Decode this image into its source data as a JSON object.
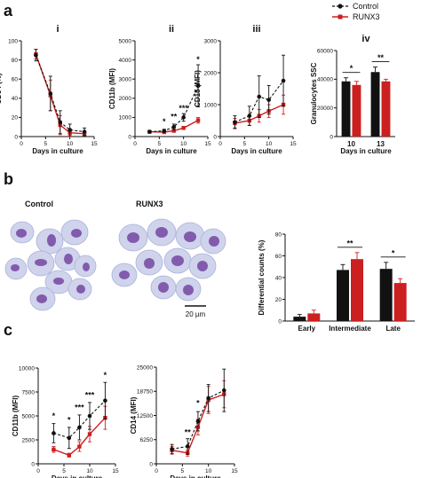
{
  "panels": {
    "a": "a",
    "b": "b",
    "c": "c"
  },
  "legend": {
    "control": "Control",
    "runx3": "RUNX3"
  },
  "colors": {
    "control": "#111111",
    "runx3": "#cc1f1f"
  },
  "micrographs": {
    "control_label": "Control",
    "runx3_label": "RUNX3",
    "scale_bar": "20 µm"
  },
  "chart_data": [
    {
      "id": "a_i",
      "type": "line",
      "panel_label": "i",
      "xlabel": "Days in culture",
      "ylabel": "CD34 (%)",
      "xlim": [
        0,
        15
      ],
      "ylim": [
        0,
        100
      ],
      "xticks": [
        0,
        5,
        10,
        15
      ],
      "yticks": [
        0,
        20,
        40,
        60,
        80,
        100
      ],
      "series": [
        {
          "name": "Control",
          "x": [
            3,
            6,
            8,
            10,
            13
          ],
          "y": [
            85,
            45,
            15,
            7,
            5
          ],
          "err": [
            6,
            18,
            12,
            6,
            4
          ]
        },
        {
          "name": "RUNX3",
          "x": [
            3,
            6,
            8,
            10,
            13
          ],
          "y": [
            86,
            43,
            12,
            4,
            3
          ],
          "err": [
            5,
            16,
            10,
            4,
            2
          ]
        }
      ],
      "annotations": []
    },
    {
      "id": "a_ii",
      "type": "line",
      "panel_label": "ii",
      "xlabel": "Days in culture",
      "ylabel": "CD11b (MFI)",
      "xlim": [
        0,
        15
      ],
      "ylim": [
        0,
        5000
      ],
      "xticks": [
        0,
        5,
        10,
        15
      ],
      "yticks": [
        0,
        1000,
        2000,
        3000,
        4000,
        5000
      ],
      "series": [
        {
          "name": "Control",
          "x": [
            3,
            6,
            8,
            10,
            13
          ],
          "y": [
            250,
            300,
            500,
            1000,
            2650
          ],
          "err": [
            50,
            80,
            150,
            200,
            1100
          ]
        },
        {
          "name": "RUNX3",
          "x": [
            3,
            6,
            8,
            10,
            13
          ],
          "y": [
            250,
            230,
            300,
            450,
            850
          ],
          "err": [
            40,
            50,
            60,
            80,
            150
          ]
        }
      ],
      "annotations": [
        {
          "text": "*",
          "x": 6,
          "y": 650
        },
        {
          "text": "**",
          "x": 8,
          "y": 900
        },
        {
          "text": "***",
          "x": 10,
          "y": 1350
        },
        {
          "text": "*",
          "x": 13,
          "y": 3900
        }
      ]
    },
    {
      "id": "a_iii",
      "type": "line",
      "panel_label": "iii",
      "xlabel": "Days in culture",
      "ylabel": "CD15 (MFI)",
      "xlim": [
        0,
        15
      ],
      "ylim": [
        0,
        3000
      ],
      "xticks": [
        0,
        5,
        10,
        15
      ],
      "yticks": [
        0,
        1000,
        2000,
        3000
      ],
      "series": [
        {
          "name": "Control",
          "x": [
            3,
            6,
            8,
            10,
            13
          ],
          "y": [
            450,
            650,
            1250,
            1150,
            1750
          ],
          "err": [
            200,
            300,
            650,
            450,
            800
          ]
        },
        {
          "name": "RUNX3",
          "x": [
            3,
            6,
            8,
            10,
            13
          ],
          "y": [
            420,
            500,
            650,
            800,
            1000
          ],
          "err": [
            150,
            150,
            200,
            200,
            300
          ]
        }
      ],
      "annotations": []
    },
    {
      "id": "a_iv",
      "type": "bar",
      "panel_label": "iv",
      "xlabel": "Days in culture",
      "ylabel": "Granulocytes SSC",
      "categories": [
        "10",
        "13"
      ],
      "ylim": [
        0,
        60000
      ],
      "yticks": [
        0,
        20000,
        40000,
        60000
      ],
      "series": [
        {
          "name": "Control",
          "values": [
            38500,
            45000
          ],
          "err": [
            2500,
            3500
          ]
        },
        {
          "name": "RUNX3",
          "values": [
            36000,
            38500
          ],
          "err": [
            2500,
            1500
          ]
        }
      ],
      "annotations": [
        {
          "text": "*",
          "category": "10"
        },
        {
          "text": "**",
          "category": "13"
        }
      ]
    },
    {
      "id": "b_counts",
      "type": "bar",
      "panel_label": "",
      "xlabel": "",
      "ylabel": "Differential counts (%)",
      "categories": [
        "Early",
        "Intermediate",
        "Late"
      ],
      "ylim": [
        0,
        80
      ],
      "yticks": [
        0,
        20,
        40,
        60,
        80
      ],
      "series": [
        {
          "name": "Control",
          "values": [
            4,
            47,
            48
          ],
          "err": [
            2,
            5,
            6
          ]
        },
        {
          "name": "RUNX3",
          "values": [
            7,
            57,
            35
          ],
          "err": [
            3,
            6,
            4
          ]
        }
      ],
      "annotations": [
        {
          "text": "**",
          "category": "Intermediate"
        },
        {
          "text": "*",
          "category": "Late"
        }
      ]
    },
    {
      "id": "c_cd11b",
      "type": "line",
      "panel_label": "",
      "xlabel": "Days in culture",
      "ylabel": "CD11b (MFI)",
      "xlim": [
        0,
        15
      ],
      "ylim": [
        0,
        10000
      ],
      "xticks": [
        0,
        5,
        10,
        15
      ],
      "yticks": [
        0,
        2500,
        5000,
        7500,
        10000
      ],
      "series": [
        {
          "name": "Control",
          "x": [
            3,
            6,
            8,
            10,
            13
          ],
          "y": [
            3200,
            2700,
            3800,
            5000,
            6600
          ],
          "err": [
            1000,
            1100,
            1300,
            1400,
            1900
          ]
        },
        {
          "name": "RUNX3",
          "x": [
            3,
            6,
            8,
            10,
            13
          ],
          "y": [
            1500,
            900,
            1800,
            3100,
            4800
          ],
          "err": [
            300,
            200,
            500,
            800,
            1200
          ]
        }
      ],
      "annotations": [
        {
          "text": "*",
          "x": 3,
          "y": 4700
        },
        {
          "text": "*",
          "x": 6,
          "y": 4300
        },
        {
          "text": "***",
          "x": 8,
          "y": 5600
        },
        {
          "text": "***",
          "x": 10,
          "y": 6900
        },
        {
          "text": "*",
          "x": 13,
          "y": 9000
        }
      ]
    },
    {
      "id": "c_cd14",
      "type": "line",
      "panel_label": "",
      "xlabel": "Days in culture",
      "ylabel": "CD14 (MFI)",
      "xlim": [
        0,
        15
      ],
      "ylim": [
        0,
        25000
      ],
      "xticks": [
        0,
        5,
        10,
        15
      ],
      "yticks": [
        0,
        6250,
        12500,
        18750,
        25000
      ],
      "series": [
        {
          "name": "Control",
          "x": [
            3,
            6,
            8,
            10,
            13
          ],
          "y": [
            3800,
            4500,
            11000,
            17000,
            19000
          ],
          "err": [
            1200,
            2000,
            2500,
            3500,
            5500
          ]
        },
        {
          "name": "RUNX3",
          "x": [
            3,
            6,
            8,
            10,
            13
          ],
          "y": [
            3500,
            2800,
            9500,
            16500,
            18000
          ],
          "err": [
            1000,
            800,
            2000,
            3500,
            3500
          ]
        }
      ],
      "annotations": [
        {
          "text": "**",
          "x": 6,
          "y": 7500
        },
        {
          "text": "*",
          "x": 8,
          "y": 15000
        }
      ]
    }
  ]
}
